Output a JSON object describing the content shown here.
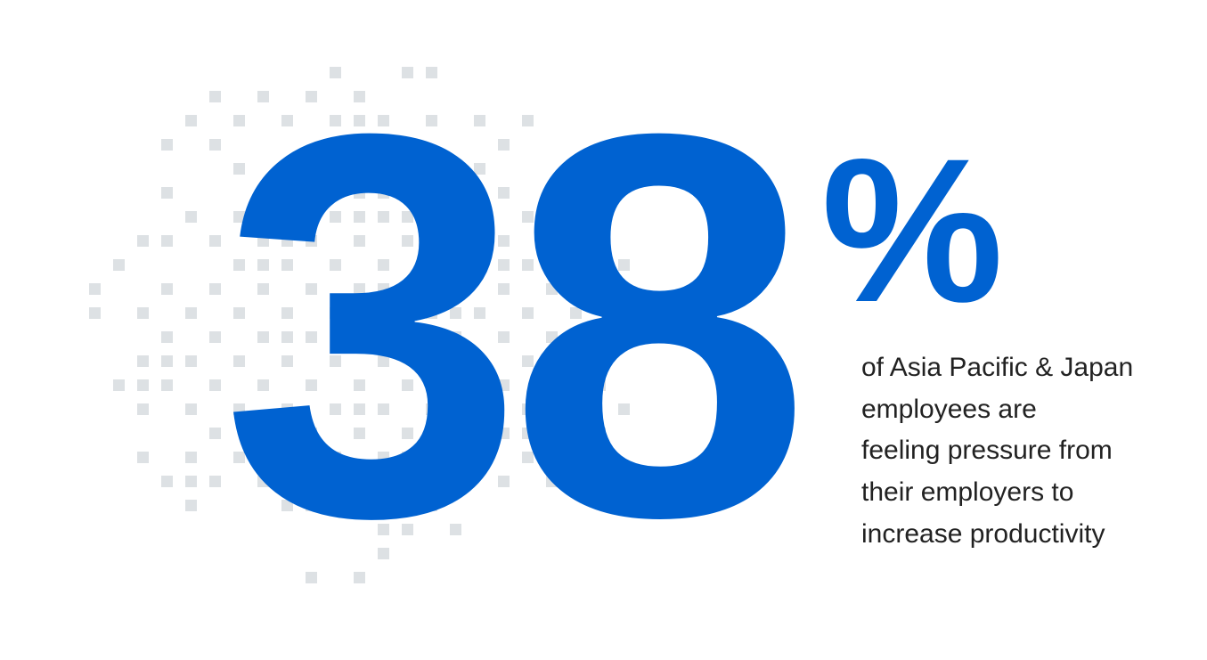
{
  "stat": {
    "value": "38",
    "unit": "%"
  },
  "description": {
    "lines": [
      "of Asia Pacific & Japan",
      "employees are",
      "feeling pressure from",
      "their employers to",
      "increase productivity"
    ]
  }
}
